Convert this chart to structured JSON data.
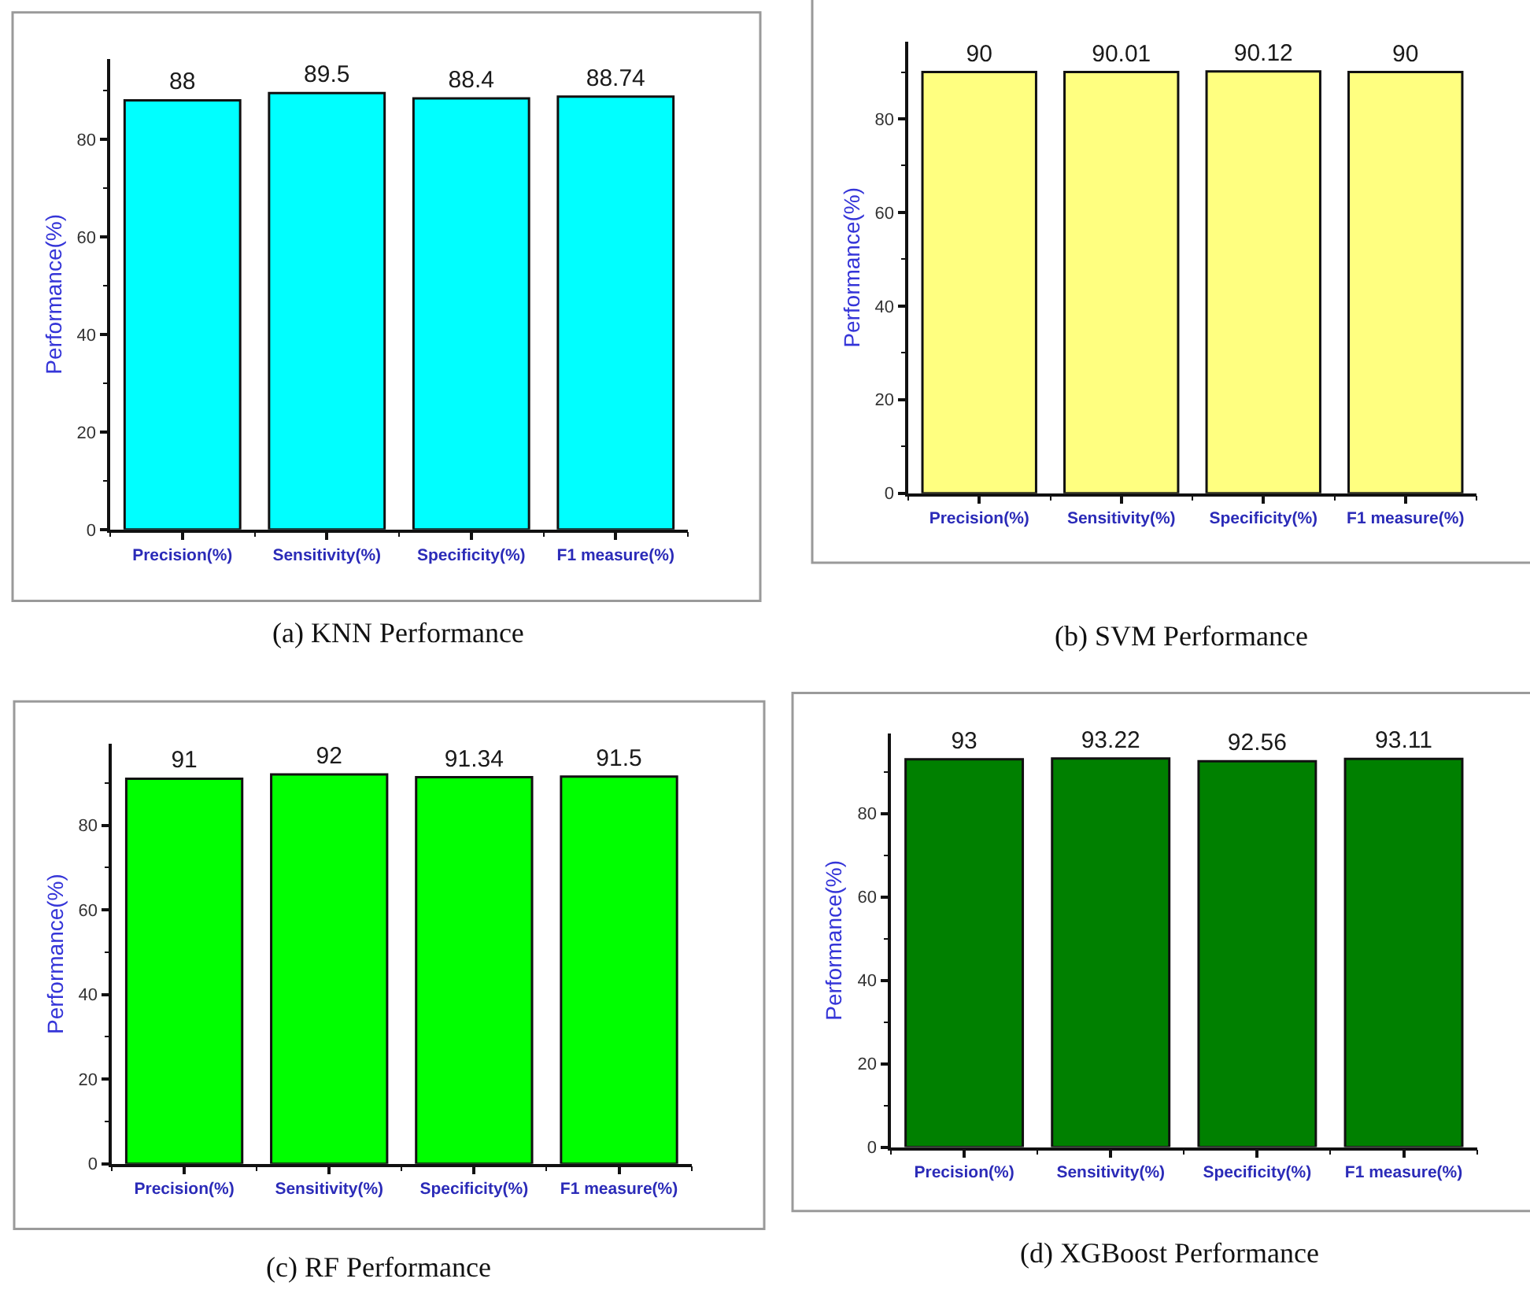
{
  "chart_data": [
    {
      "type": "bar",
      "title": "(a) KNN Performance",
      "ylabel": "Performance(%)",
      "categories": [
        "Precision(%)",
        "Sensitivity(%)",
        "Specificity(%)",
        "F1 measure(%)"
      ],
      "values": [
        88,
        89.5,
        88.4,
        88.74
      ],
      "color": "#00ffff",
      "ylim": [
        0,
        96.5
      ],
      "yticks": [
        0,
        {
          "value": 10,
          "label": null
        },
        20,
        {
          "value": 30,
          "label": null
        },
        40,
        {
          "value": 50,
          "label": null
        },
        60,
        {
          "value": 70,
          "label": null
        },
        80,
        {
          "value": 90,
          "label": null
        }
      ],
      "data_labels": true
    },
    {
      "type": "bar",
      "title": "(b) SVM Performance",
      "ylabel": "Performance(%)",
      "categories": [
        "Precision(%)",
        "Sensitivity(%)",
        "Specificity(%)",
        "F1 measure(%)"
      ],
      "values": [
        90,
        90.01,
        90.12,
        90
      ],
      "color": "#ffff80",
      "ylim": [
        0,
        96.5
      ],
      "yticks": [
        0,
        {
          "value": 10,
          "label": null
        },
        20,
        {
          "value": 30,
          "label": null
        },
        40,
        {
          "value": 50,
          "label": null
        },
        60,
        {
          "value": 70,
          "label": null
        },
        80,
        {
          "value": 90,
          "label": null
        }
      ],
      "data_labels": true
    },
    {
      "type": "bar",
      "title": "(c) RF Performance",
      "ylabel": "Performance(%)",
      "categories": [
        "Precision(%)",
        "Sensitivity(%)",
        "Specificity(%)",
        "F1 measure(%)"
      ],
      "values": [
        91,
        92,
        91.34,
        91.5
      ],
      "color": "#00ff00",
      "ylim": [
        0,
        99.2
      ],
      "yticks": [
        0,
        {
          "value": 10,
          "label": null
        },
        20,
        {
          "value": 30,
          "label": null
        },
        40,
        {
          "value": 50,
          "label": null
        },
        60,
        {
          "value": 70,
          "label": null
        },
        80,
        {
          "value": 90,
          "label": null
        }
      ],
      "data_labels": true
    },
    {
      "type": "bar",
      "title": "(d) XGBoost Performance",
      "ylabel": "Performance(%)",
      "categories": [
        "Precision(%)",
        "Sensitivity(%)",
        "Specificity(%)",
        "F1 measure(%)"
      ],
      "values": [
        93,
        93.22,
        92.56,
        93.11
      ],
      "color": "#008000",
      "ylim": [
        0,
        99.2
      ],
      "yticks": [
        0,
        {
          "value": 10,
          "label": null
        },
        20,
        {
          "value": 30,
          "label": null
        },
        40,
        {
          "value": 50,
          "label": null
        },
        60,
        {
          "value": 70,
          "label": null
        },
        80,
        {
          "value": 90,
          "label": null
        }
      ],
      "data_labels": true
    }
  ]
}
